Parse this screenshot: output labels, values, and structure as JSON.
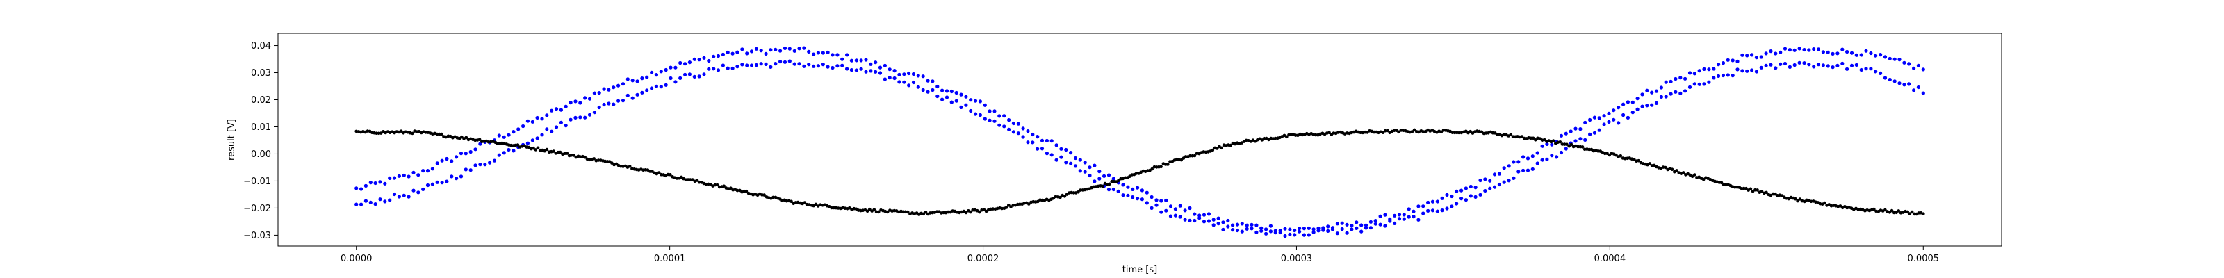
{
  "chart_data": {
    "type": "scatter",
    "title": "",
    "xlabel": "time [s]",
    "ylabel": "result [V]",
    "xlim": [
      -2.5e-05,
      0.000525
    ],
    "ylim": [
      -0.034,
      0.0445
    ],
    "grid": false,
    "legend": "none",
    "xticks": [
      "0.0000",
      "0.0001",
      "0.0002",
      "0.0003",
      "0.0004",
      "0.0005"
    ],
    "yticks": [
      "0.04",
      "0.03",
      "0.02",
      "0.01",
      "0.00",
      "−0.01",
      "−0.02",
      "−0.03"
    ],
    "series": [
      {
        "color": "#0000ff",
        "marker": "dot",
        "points_per_trace": 330,
        "traces": [
          {
            "x": [
              0.0,
              2e-05,
              4e-05,
              6e-05,
              8e-05,
              0.0001,
              0.00012,
              0.00014,
              0.00016,
              0.00018,
              0.0002,
              0.00022,
              0.00024,
              0.00026,
              0.00028,
              0.0003,
              0.00032,
              0.00034,
              0.00036,
              0.00038,
              0.0004,
              0.00042,
              0.00044,
              0.00046,
              0.00048,
              0.0005
            ],
            "y": [
              -0.013,
              -0.007,
              0.003,
              0.014,
              0.024,
              0.032,
              0.0375,
              0.0385,
              0.035,
              0.028,
              0.018,
              0.005,
              -0.008,
              -0.019,
              -0.026,
              -0.028,
              -0.026,
              -0.02,
              -0.01,
              0.003,
              0.016,
              0.027,
              0.035,
              0.0385,
              0.0375,
              0.0315
            ]
          },
          {
            "x": [
              0.0,
              2e-05,
              4e-05,
              6e-05,
              8e-05,
              0.0001,
              0.00012,
              0.00014,
              0.00016,
              0.00018,
              0.0002,
              0.00022,
              0.00024,
              0.00026,
              0.00028,
              0.0003,
              0.00032,
              0.00034,
              0.00036,
              0.00038,
              0.0004,
              0.00042,
              0.00044,
              0.00046,
              0.00048,
              0.0005
            ],
            "y": [
              -0.019,
              -0.014,
              -0.004,
              0.008,
              0.018,
              0.027,
              0.0325,
              0.0335,
              0.031,
              0.025,
              0.014,
              0.001,
              -0.012,
              -0.022,
              -0.028,
              -0.0295,
              -0.028,
              -0.023,
              -0.014,
              -0.002,
              0.011,
              0.022,
              0.03,
              0.0335,
              0.032,
              0.023
            ]
          }
        ]
      },
      {
        "color": "#000000",
        "marker": "dot",
        "points_per_trace": 700,
        "traces": [
          {
            "x": [
              0.0,
              2e-05,
              4e-05,
              6e-05,
              8e-05,
              0.0001,
              0.00012,
              0.00014,
              0.00016,
              0.00018,
              0.0002,
              0.00022,
              0.00024,
              0.00026,
              0.00028,
              0.0003,
              0.00032,
              0.00034,
              0.00036,
              0.00038,
              0.0004,
              0.00042,
              0.00044,
              0.00046,
              0.00048,
              0.0005
            ],
            "y": [
              0.008,
              0.008,
              0.005,
              0.0015,
              -0.003,
              -0.008,
              -0.013,
              -0.018,
              -0.0205,
              -0.022,
              -0.021,
              -0.017,
              -0.011,
              -0.003,
              0.004,
              0.007,
              0.008,
              0.0085,
              0.008,
              0.005,
              0.0,
              -0.006,
              -0.012,
              -0.017,
              -0.0205,
              -0.022
            ]
          }
        ]
      }
    ]
  }
}
